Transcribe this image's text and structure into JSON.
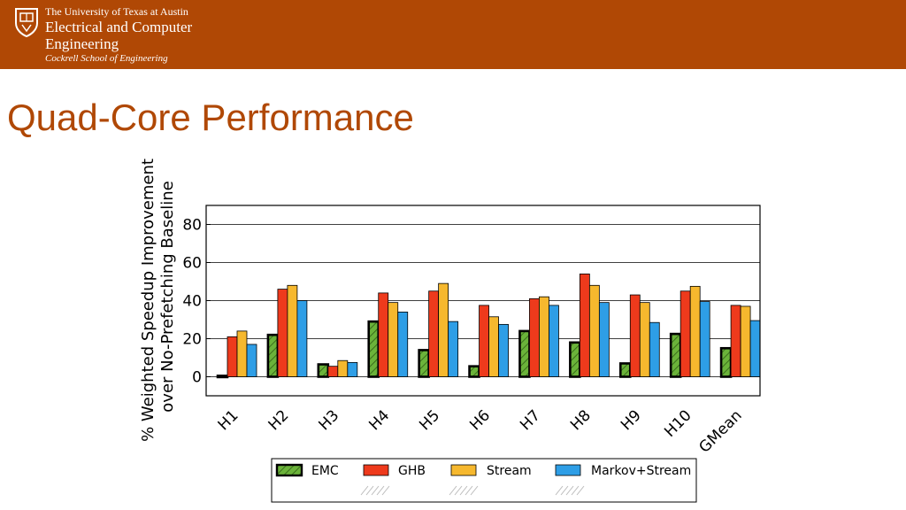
{
  "header": {
    "university": "The University of Texas at Austin",
    "department_line1": "Electrical and Computer",
    "department_line2": "Engineering",
    "school": "Cockrell School of Engineering"
  },
  "slide": {
    "title": "Quad-Core Performance"
  },
  "colors": {
    "header_bg": "#b04805",
    "title": "#b04805",
    "EMC": "#6bb33a",
    "GHB": "#ee3a1c",
    "Stream": "#f6b82e",
    "Markov+Stream": "#2e9ee6"
  },
  "chart_data": {
    "type": "bar",
    "title": "",
    "xlabel": "",
    "ylabel_line1": "% Weighted Speedup Improvement",
    "ylabel_line2": "over No-Prefetching Baseline",
    "ylim": [
      -10,
      90
    ],
    "yticks": [
      0,
      20,
      40,
      60,
      80
    ],
    "grid": true,
    "legend_position": "bottom",
    "categories": [
      "H1",
      "H2",
      "H3",
      "H4",
      "H5",
      "H6",
      "H7",
      "H8",
      "H9",
      "H10",
      "GMean"
    ],
    "series": [
      {
        "name": "EMC",
        "values": [
          0.5,
          22,
          6.5,
          29,
          14,
          5.5,
          24,
          18,
          7,
          22.5,
          15
        ]
      },
      {
        "name": "GHB",
        "values": [
          21,
          46,
          5.5,
          44,
          45,
          37.5,
          41,
          54,
          43,
          45,
          37.5
        ]
      },
      {
        "name": "Stream",
        "values": [
          24,
          48,
          8.5,
          39,
          49,
          31.5,
          42,
          48,
          39,
          47.5,
          37
        ]
      },
      {
        "name": "Markov+Stream",
        "values": [
          17,
          40,
          7.5,
          34,
          29,
          27.5,
          37.5,
          39,
          28.5,
          39.5,
          29.5
        ]
      }
    ]
  }
}
